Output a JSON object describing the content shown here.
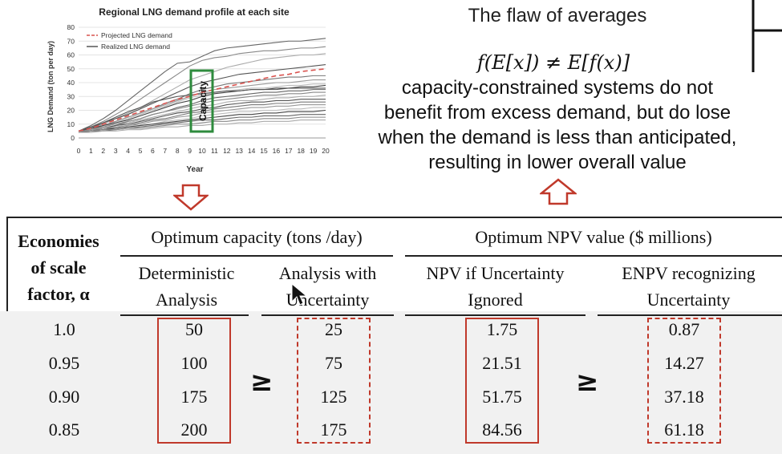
{
  "chart_data": {
    "type": "line",
    "title": "Regional LNG demand profile at each site",
    "xlabel": "Year",
    "ylabel": "LNG Demand (ton per day)",
    "xlim": [
      0,
      20
    ],
    "ylim": [
      0,
      80
    ],
    "xticks": [
      "0",
      "1",
      "2",
      "3",
      "4",
      "5",
      "6",
      "7",
      "8",
      "9",
      "10",
      "11",
      "12",
      "13",
      "14",
      "15",
      "16",
      "17",
      "18",
      "19",
      "20"
    ],
    "yticks": [
      "0",
      "10",
      "20",
      "30",
      "40",
      "50",
      "60",
      "70",
      "80"
    ],
    "legend": [
      "Projected LNG demand",
      "Realized LNG demand"
    ],
    "legend_position": "top-left",
    "annotation": "Capacity",
    "colors": {
      "projected": "#d9534f",
      "realized": "#555555",
      "capacity_box": "#2e8b3d"
    },
    "series": [
      {
        "name": "Projected LNG demand",
        "style": "dashed",
        "values": [
          5,
          7,
          10,
          13,
          16,
          19,
          22,
          25,
          28,
          30,
          33,
          35,
          37,
          39,
          41,
          43,
          45,
          46,
          48,
          49,
          50
        ]
      },
      {
        "style": "realized",
        "values": [
          5,
          9,
          14,
          20,
          27,
          34,
          41,
          48,
          54,
          55,
          59,
          63,
          65,
          66,
          67,
          68,
          69,
          70,
          70,
          71,
          72
        ]
      },
      {
        "style": "realized",
        "values": [
          5,
          8,
          12,
          17,
          22,
          28,
          34,
          40,
          46,
          52,
          56,
          58,
          59,
          61,
          62,
          63,
          63,
          64,
          65,
          65,
          66
        ]
      },
      {
        "style": "realized",
        "values": [
          4,
          7,
          10,
          14,
          18,
          22,
          27,
          32,
          37,
          42,
          45,
          48,
          51,
          53,
          55,
          57,
          58,
          59,
          60,
          60,
          61
        ]
      },
      {
        "style": "realized",
        "values": [
          5,
          8,
          11,
          14,
          17,
          21,
          25,
          29,
          33,
          37,
          40,
          42,
          44,
          46,
          47,
          48,
          49,
          50,
          51,
          52,
          53
        ]
      },
      {
        "style": "realized",
        "values": [
          4,
          6,
          9,
          12,
          15,
          18,
          21,
          25,
          28,
          32,
          35,
          37,
          39,
          40,
          41,
          42,
          43,
          44,
          44,
          45,
          45
        ]
      },
      {
        "style": "realized",
        "values": [
          5,
          7,
          9,
          12,
          15,
          18,
          21,
          24,
          27,
          30,
          33,
          35,
          36,
          37,
          38,
          39,
          40,
          40,
          41,
          42,
          42
        ]
      },
      {
        "style": "realized",
        "values": [
          4,
          6,
          8,
          11,
          14,
          17,
          20,
          23,
          26,
          29,
          31,
          33,
          34,
          35,
          36,
          36,
          37,
          38,
          38,
          39,
          39
        ]
      },
      {
        "style": "realized",
        "values": [
          5,
          7,
          9,
          11,
          13,
          16,
          19,
          22,
          25,
          27,
          30,
          32,
          33,
          34,
          35,
          35,
          36,
          36,
          37,
          37,
          38
        ]
      },
      {
        "style": "realized",
        "values": [
          4,
          5,
          7,
          9,
          12,
          14,
          17,
          19,
          22,
          24,
          27,
          29,
          30,
          31,
          32,
          33,
          33,
          34,
          34,
          35,
          35
        ]
      },
      {
        "style": "realized",
        "values": [
          5,
          6,
          8,
          10,
          12,
          14,
          17,
          19,
          21,
          23,
          25,
          27,
          28,
          29,
          30,
          31,
          31,
          32,
          32,
          33,
          33
        ]
      },
      {
        "style": "realized",
        "values": [
          4,
          6,
          7,
          9,
          11,
          13,
          15,
          17,
          19,
          21,
          23,
          24,
          26,
          27,
          27,
          28,
          29,
          29,
          30,
          30,
          31
        ]
      },
      {
        "style": "realized",
        "values": [
          5,
          6,
          7,
          9,
          10,
          12,
          14,
          16,
          18,
          19,
          21,
          22,
          24,
          25,
          26,
          26,
          27,
          27,
          28,
          28,
          28
        ]
      },
      {
        "style": "realized",
        "values": [
          4,
          5,
          6,
          8,
          9,
          11,
          13,
          14,
          16,
          18,
          19,
          21,
          22,
          23,
          24,
          24,
          25,
          25,
          26,
          26,
          26
        ]
      },
      {
        "style": "realized",
        "values": [
          5,
          6,
          7,
          8,
          9,
          10,
          12,
          13,
          15,
          16,
          18,
          19,
          20,
          21,
          22,
          22,
          23,
          23,
          24,
          24,
          24
        ]
      },
      {
        "style": "realized",
        "values": [
          4,
          5,
          6,
          7,
          8,
          9,
          10,
          12,
          13,
          14,
          16,
          17,
          18,
          19,
          19,
          20,
          20,
          21,
          21,
          22,
          22
        ]
      },
      {
        "style": "realized",
        "values": [
          5,
          5,
          6,
          7,
          8,
          9,
          10,
          11,
          12,
          13,
          14,
          15,
          16,
          17,
          17,
          18,
          18,
          19,
          19,
          19,
          20
        ]
      },
      {
        "style": "realized",
        "values": [
          4,
          5,
          5,
          6,
          7,
          8,
          9,
          10,
          11,
          12,
          13,
          13,
          14,
          15,
          15,
          16,
          16,
          16,
          17,
          17,
          17
        ]
      },
      {
        "style": "realized",
        "values": [
          5,
          5,
          6,
          6,
          7,
          7,
          8,
          9,
          10,
          10,
          11,
          12,
          12,
          13,
          13,
          14,
          14,
          14,
          15,
          15,
          15
        ]
      },
      {
        "style": "realized",
        "values": [
          4,
          4,
          5,
          5,
          6,
          6,
          7,
          8,
          8,
          9,
          9,
          10,
          10,
          11,
          11,
          12,
          12,
          12,
          13,
          13,
          13
        ]
      },
      {
        "style": "realized",
        "values": [
          5,
          7,
          11,
          15,
          19,
          22,
          26,
          28,
          30,
          31,
          32,
          33,
          34,
          34,
          35,
          35,
          35,
          36,
          36,
          36,
          36
        ]
      }
    ]
  },
  "flaw": {
    "title": "The flaw of averages",
    "formula": "f(E[x]) ≠ E[f(x)]",
    "description_lines": [
      "capacity-constrained systems do not",
      "benefit from excess demand, but do lose",
      "when the demand is less than anticipated,",
      "resulting in lower overall value"
    ]
  },
  "arrows": {
    "down": "down-arrow-icon",
    "up": "up-arrow-icon",
    "color": "#c0392b"
  },
  "table": {
    "factor_header": [
      "Economies",
      "of scale",
      "factor, α"
    ],
    "group_capacity": "Optimum capacity (tons /day)",
    "group_npv": "Optimum NPV value ($ millions)",
    "sub_headers": [
      [
        "Deterministic",
        "Analysis"
      ],
      [
        "Analysis with",
        "Uncertainty"
      ],
      [
        "NPV if Uncertainty",
        "Ignored"
      ],
      [
        "ENPV recognizing",
        "Uncertainty"
      ]
    ],
    "rows": [
      {
        "factor": "1.0",
        "det": "50",
        "unc": "25",
        "npv": "1.75",
        "enpv": "0.87"
      },
      {
        "factor": "0.95",
        "det": "100",
        "unc": "75",
        "npv": "21.51",
        "enpv": "14.27"
      },
      {
        "factor": "0.90",
        "det": "175",
        "unc": "125",
        "npv": "51.75",
        "enpv": "37.18"
      },
      {
        "factor": "0.85",
        "det": "200",
        "unc": "175",
        "npv": "84.56",
        "enpv": "61.18"
      }
    ],
    "geq_symbol": "≥"
  }
}
